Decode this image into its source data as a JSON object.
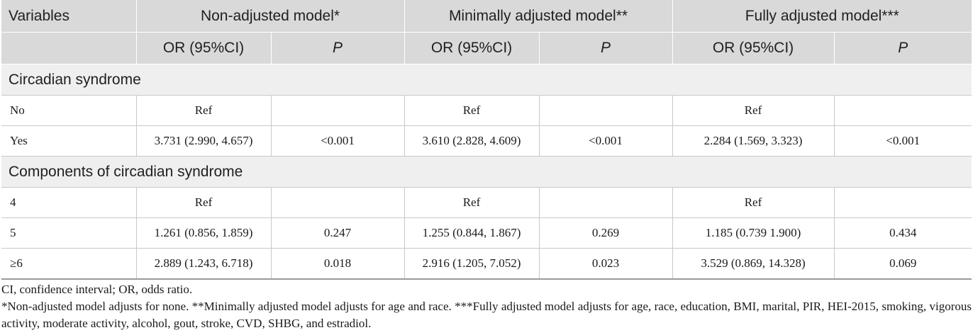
{
  "table": {
    "header_row1": {
      "variables": "Variables",
      "non_adjusted": "Non-adjusted model*",
      "minimally_adjusted": "Minimally adjusted model**",
      "fully_adjusted": "Fully adjusted model***"
    },
    "header_row2": {
      "or1": "OR (95%CI)",
      "p1": "P",
      "or2": "OR (95%CI)",
      "p2": "P",
      "or3": "OR (95%CI)",
      "p3": "P"
    },
    "sections": [
      {
        "title": "Circadian syndrome",
        "rows": [
          {
            "label": "No",
            "or1": "Ref",
            "p1": "",
            "or2": "Ref",
            "p2": "",
            "or3": "Ref",
            "p3": ""
          },
          {
            "label": "Yes",
            "or1": "3.731 (2.990, 4.657)",
            "p1": "<0.001",
            "or2": "3.610 (2.828, 4.609)",
            "p2": "<0.001",
            "or3": "2.284 (1.569, 3.323)",
            "p3": "<0.001"
          }
        ]
      },
      {
        "title": "Components of circadian syndrome",
        "rows": [
          {
            "label": "4",
            "or1": "Ref",
            "p1": "",
            "or2": "Ref",
            "p2": "",
            "or3": "Ref",
            "p3": ""
          },
          {
            "label": "5",
            "or1": "1.261 (0.856, 1.859)",
            "p1": "0.247",
            "or2": "1.255 (0.844, 1.867)",
            "p2": "0.269",
            "or3": "1.185 (0.739 1.900)",
            "p3": "0.434"
          },
          {
            "label": "≥6",
            "or1": "2.889 (1.243, 6.718)",
            "p1": "0.018",
            "or2": "2.916 (1.205, 7.052)",
            "p2": "0.023",
            "or3": "3.529 (0.869, 14.328)",
            "p3": "0.069"
          }
        ]
      }
    ]
  },
  "footnotes": {
    "abbreviations": "CI, confidence interval; OR, odds ratio.",
    "models": "*Non-adjusted model adjusts for none. **Minimally adjusted model adjusts for age and race. ***Fully adjusted model adjusts for age, race, education, BMI, marital, PIR, HEI-2015, smoking, vigorous activity, moderate activity, alcohol, gout, stroke, CVD, SHBG, and estradiol."
  }
}
